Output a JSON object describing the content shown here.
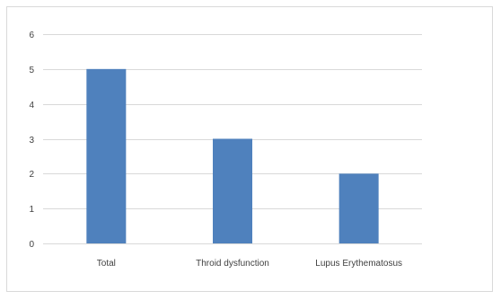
{
  "chart_data": {
    "type": "bar",
    "categories": [
      "Total",
      "Throid dysfunction",
      "Lupus Erythematosus"
    ],
    "values": [
      5,
      3,
      2
    ],
    "ylim": [
      0,
      6
    ],
    "yticks": [
      0,
      1,
      2,
      3,
      4,
      5,
      6
    ],
    "title": "",
    "xlabel": "",
    "ylabel": "",
    "grid": true,
    "legend": "none",
    "bar_color": "#4f81bd",
    "grid_color": "#d9d9d9"
  }
}
